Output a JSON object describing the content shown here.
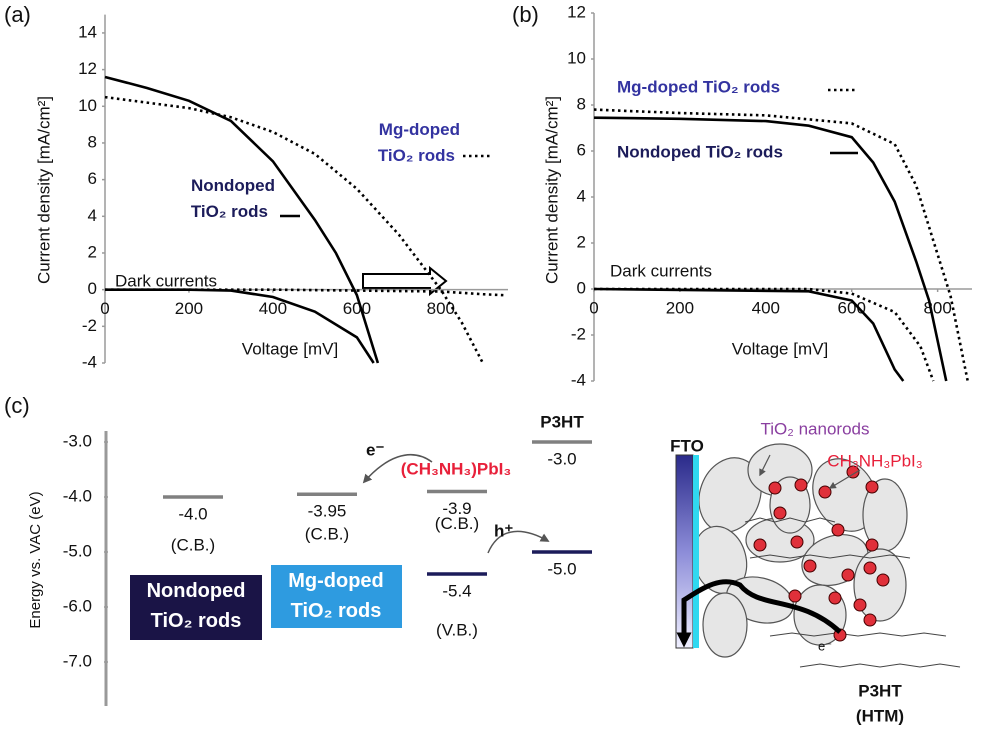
{
  "panel_labels": [
    "(a)",
    "(b)",
    "(c)"
  ],
  "chart_data": [
    {
      "type": "line",
      "ylabel": "Current density [mA/cm²]",
      "xlabel": "Voltage [mV]",
      "xlim": [
        0,
        960
      ],
      "ylim": [
        -4,
        15
      ],
      "xticks": [
        0,
        200,
        400,
        600,
        800
      ],
      "yticks": [
        -4,
        -2,
        0,
        2,
        4,
        6,
        8,
        10,
        12,
        14
      ],
      "annotation": "Dark currents",
      "series": [
        {
          "name": "Nondoped TiO₂ rods",
          "color": "#000000",
          "dash": "solid",
          "x": [
            0,
            100,
            200,
            300,
            400,
            500,
            550,
            600,
            650
          ],
          "values": [
            11.6,
            11.0,
            10.3,
            9.2,
            7.0,
            3.8,
            2.0,
            -0.3,
            -4
          ]
        },
        {
          "name": "Mg-doped TiO₂ rods",
          "color": "#000000",
          "dash": "dotted",
          "x": [
            0,
            100,
            200,
            300,
            400,
            500,
            600,
            700,
            800,
            850,
            900
          ],
          "values": [
            10.5,
            10.2,
            9.9,
            9.4,
            8.6,
            7.4,
            5.5,
            3.0,
            0,
            -1.8,
            -4
          ]
        },
        {
          "color": "#000000",
          "dash": "solid",
          "x": [
            0,
            200,
            300,
            400,
            500,
            600,
            640
          ],
          "values": [
            0,
            0,
            -0.05,
            -0.4,
            -1.2,
            -2.6,
            -4
          ]
        },
        {
          "color": "#000000",
          "dash": "dotted",
          "x": [
            0,
            400,
            600,
            800,
            900,
            950
          ],
          "values": [
            0,
            0,
            -0.05,
            -0.1,
            -0.25,
            -0.3
          ]
        }
      ]
    },
    {
      "type": "line",
      "ylabel": "Current density [mA/cm²]",
      "xlabel": "Voltage [mV]",
      "xlim": [
        0,
        880
      ],
      "ylim": [
        -4,
        12
      ],
      "xticks": [
        0,
        200,
        400,
        600,
        800
      ],
      "yticks": [
        -4,
        -2,
        0,
        2,
        4,
        6,
        8,
        10,
        12
      ],
      "annotation": "Dark currents",
      "series": [
        {
          "name": "Mg-doped TiO₂ rods",
          "color": "#000000",
          "dash": "dotted",
          "x": [
            0,
            200,
            400,
            600,
            700,
            750,
            800,
            830,
            870
          ],
          "values": [
            7.8,
            7.65,
            7.55,
            7.2,
            6.3,
            4.5,
            1.5,
            -0.3,
            -4
          ]
        },
        {
          "name": "Nondoped TiO₂ rods",
          "color": "#000000",
          "dash": "solid",
          "x": [
            0,
            200,
            400,
            500,
            600,
            650,
            700,
            750,
            780,
            820
          ],
          "values": [
            7.45,
            7.4,
            7.3,
            7.1,
            6.6,
            5.5,
            3.8,
            1.2,
            -0.5,
            -4
          ]
        },
        {
          "color": "#000000",
          "dash": "dotted",
          "x": [
            0,
            500,
            600,
            700,
            760,
            790
          ],
          "values": [
            0,
            0,
            -0.2,
            -1.0,
            -2.5,
            -4
          ]
        },
        {
          "color": "#000000",
          "dash": "solid",
          "x": [
            0,
            500,
            600,
            650,
            700,
            720
          ],
          "values": [
            0,
            -0.1,
            -0.5,
            -1.5,
            -3.5,
            -4
          ]
        }
      ]
    },
    {
      "type": "levels",
      "ylabel": "Energy vs. VAC (eV)",
      "ylim": [
        -2.8,
        -7.8
      ],
      "yticks": [
        {
          "value": -3,
          "label": "-3.0"
        },
        {
          "value": -4,
          "label": "-4.0"
        },
        {
          "value": -5,
          "label": "-5.0"
        },
        {
          "value": -6,
          "label": "-6.0"
        },
        {
          "value": -7,
          "label": "-7.0"
        }
      ],
      "levels": [
        {
          "value": -4,
          "value_label": "-4.0",
          "band": "(C.B.)",
          "color": "#808080"
        },
        {
          "value": -3.95,
          "value_label": "-3.95",
          "band": "(C.B.)",
          "color": "#808080"
        },
        {
          "value": -3.9,
          "value_label": "-3.9",
          "band": "(C.B.)",
          "color": "#808080"
        },
        {
          "value": -5.4,
          "value_label": "-5.4",
          "band": "(V.B.)",
          "color": "#1c1c5a"
        },
        {
          "value": -3,
          "value_label": "-3.0",
          "color": "#808080"
        },
        {
          "value": -5,
          "value_label": "-5.0",
          "color": "#1c1c5a"
        }
      ],
      "materials": [
        {
          "name": "Nondoped TiO₂ rods",
          "color": "#1a1446"
        },
        {
          "name": "Mg-doped TiO₂ rods",
          "color": "#2e9be0"
        },
        {
          "name": "(CH₃NH₃)PbI₃",
          "color": "#e8203a"
        },
        {
          "name": "P3HT",
          "color": "#111111"
        }
      ],
      "carriers": [
        "e⁻",
        "h⁺"
      ]
    }
  ],
  "schematic": {
    "electrode": "FTO",
    "rods": "TiO₂ nanorods",
    "perovskite": "CH₃NH₃PbI₃",
    "electron": "e⁻",
    "htm": [
      "P3HT",
      "(HTM)"
    ]
  }
}
